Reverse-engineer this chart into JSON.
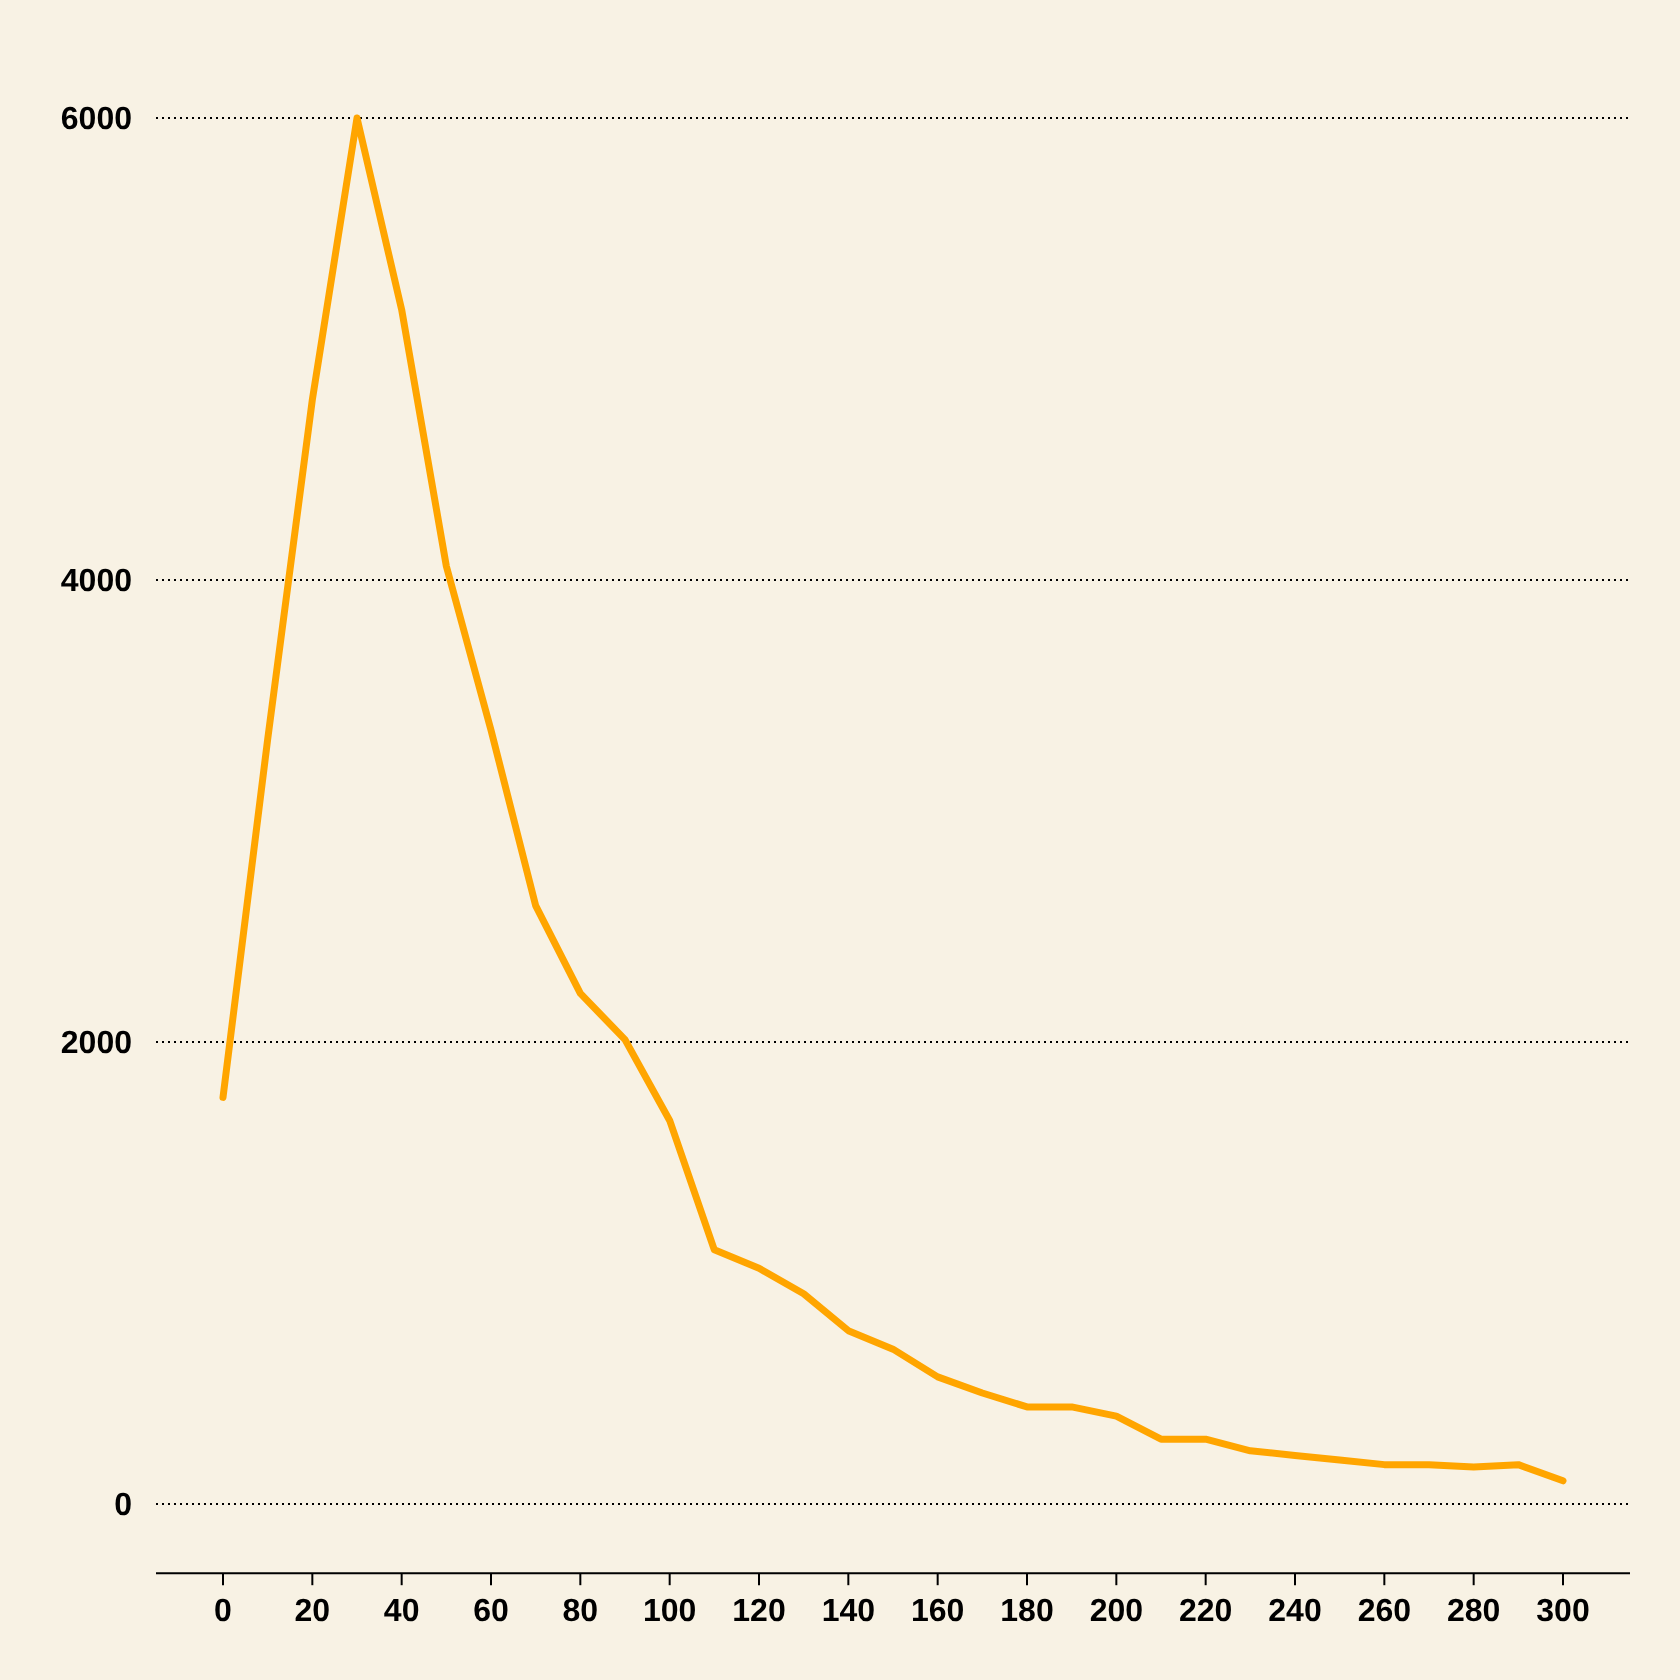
{
  "chart_data": {
    "type": "line",
    "x": [
      0,
      10,
      20,
      30,
      40,
      50,
      60,
      70,
      80,
      90,
      100,
      110,
      120,
      130,
      140,
      150,
      160,
      170,
      180,
      190,
      200,
      210,
      220,
      230,
      240,
      250,
      260,
      270,
      280,
      290,
      300
    ],
    "series": [
      {
        "color": "#ffa500",
        "values": [
          1760,
          3310,
          4780,
          6000,
          5170,
          4060,
          3350,
          2590,
          2210,
          2010,
          1660,
          1100,
          1020,
          910,
          750,
          670,
          550,
          480,
          420,
          420,
          380,
          280,
          280,
          230,
          210,
          190,
          170,
          170,
          160,
          170,
          100
        ]
      }
    ],
    "xlim": [
      -15,
      315
    ],
    "ylim": [
      -300,
      6000
    ],
    "xticks": [
      0,
      20,
      40,
      60,
      80,
      100,
      120,
      140,
      160,
      180,
      200,
      220,
      240,
      260,
      280,
      300
    ],
    "yticks": [
      0,
      2000,
      4000,
      6000
    ],
    "grid": "y",
    "marker": "none",
    "line_style": "solid"
  }
}
